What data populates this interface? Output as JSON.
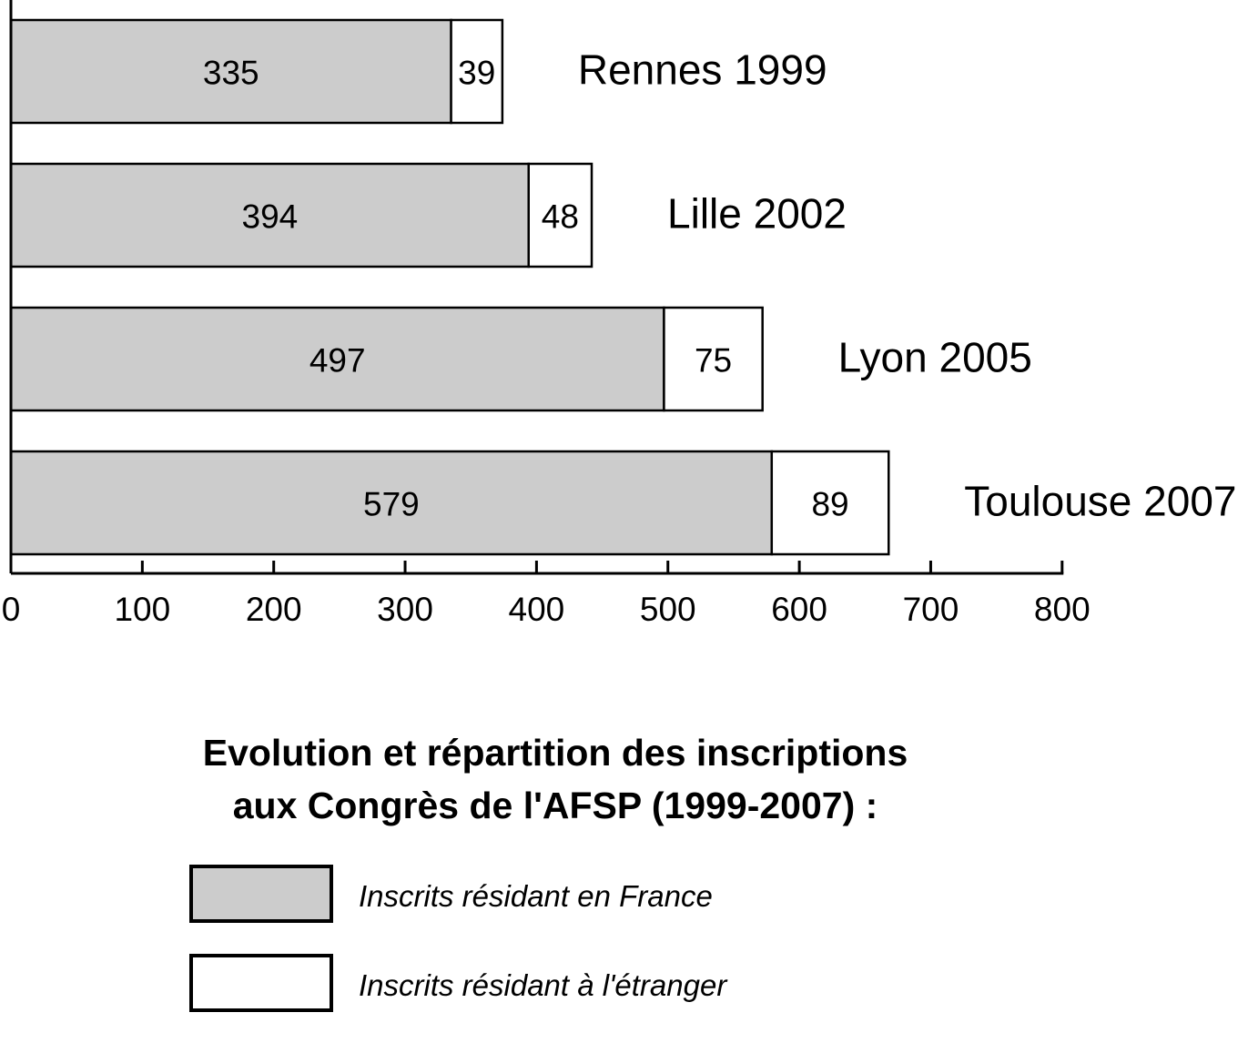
{
  "chart_data": {
    "type": "bar",
    "orientation": "horizontal",
    "stacked": true,
    "categories": [
      "Rennes 1999",
      "Lille 2002",
      "Lyon 2005",
      "Toulouse 2007"
    ],
    "series": [
      {
        "name": "Inscrits résidant en France",
        "values": [
          335,
          394,
          497,
          579
        ],
        "color": "#cccccc"
      },
      {
        "name": "Inscrits résidant à l'étranger",
        "values": [
          39,
          48,
          75,
          89
        ],
        "color": "#ffffff"
      }
    ],
    "xlim": [
      0,
      800
    ],
    "xticks": [
      0,
      100,
      200,
      300,
      400,
      500,
      600,
      700,
      800
    ],
    "grid": false,
    "legend_position": "bottom",
    "title_lines": [
      "Evolution et répartition des inscriptions",
      "aux Congrès de l'AFSP (1999-2007) :"
    ]
  }
}
